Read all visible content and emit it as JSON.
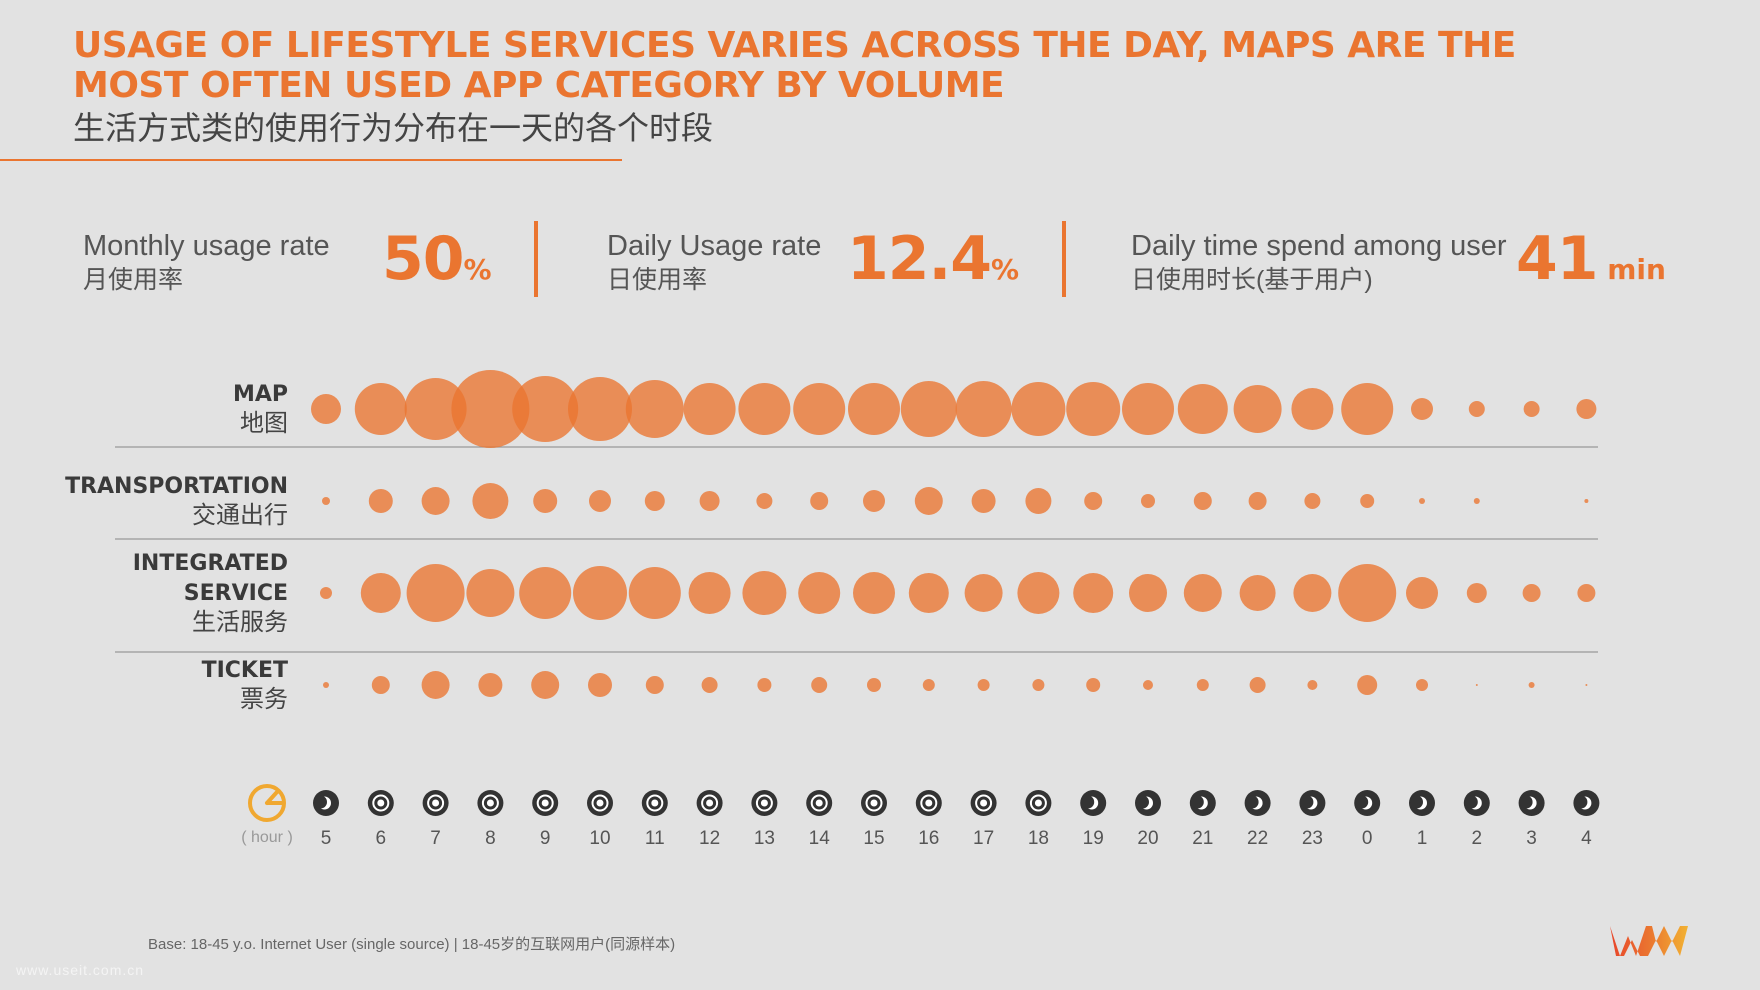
{
  "title": {
    "en": "USAGE OF LIFESTYLE SERVICES VARIES ACROSS THE DAY, MAPS ARE THE MOST OFTEN USED APP CATEGORY BY VOLUME",
    "zh": "生活方式类的使用行为分布在一天的各个时段"
  },
  "kpis": [
    {
      "label": "Monthly usage rate",
      "label_zh": "月使用率",
      "value": "50",
      "unit": "%"
    },
    {
      "label": "Daily Usage rate",
      "label_zh": "日使用率",
      "value": "12.4",
      "unit": "%"
    },
    {
      "label": "Daily time spend among user",
      "label_zh": "日使用时长(基于用户)",
      "value": "41",
      "unit": " min"
    }
  ],
  "colors": {
    "accent": "#ea7530",
    "bubble": "#ea7530",
    "bubble_opacity": 0.78,
    "rule": "#999999",
    "day_icon": "#333333",
    "night_icon": "#333333"
  },
  "chart_data": {
    "type": "bubble",
    "x_unit_label": "( hour )",
    "x": [
      "5",
      "6",
      "7",
      "8",
      "9",
      "10",
      "11",
      "12",
      "13",
      "14",
      "15",
      "16",
      "17",
      "18",
      "19",
      "20",
      "21",
      "22",
      "23",
      "0",
      "1",
      "2",
      "3",
      "4"
    ],
    "time_of_day": [
      "night",
      "day",
      "day",
      "day",
      "day",
      "day",
      "day",
      "day",
      "day",
      "day",
      "day",
      "day",
      "day",
      "day",
      "night",
      "night",
      "night",
      "night",
      "night",
      "night",
      "night",
      "night",
      "night",
      "night"
    ],
    "series": [
      {
        "name": "MAP",
        "name_zh": "地图",
        "values": [
          15,
          26,
          31,
          39,
          33,
          32,
          29,
          26,
          26,
          26,
          26,
          28,
          28,
          27,
          27,
          26,
          25,
          24,
          21,
          26,
          11,
          8,
          8,
          10
        ]
      },
      {
        "name": "TRANSPORTATION",
        "name_zh": "交通出行",
        "values": [
          4,
          12,
          14,
          18,
          12,
          11,
          10,
          10,
          8,
          9,
          11,
          14,
          12,
          13,
          9,
          7,
          9,
          9,
          8,
          7,
          3,
          3,
          0,
          2
        ]
      },
      {
        "name": "INTEGRATED SERVICE",
        "name_zh": "生活服务",
        "name_lines": [
          "INTEGRATED",
          "SERVICE"
        ],
        "values": [
          6,
          20,
          29,
          24,
          26,
          27,
          26,
          21,
          22,
          21,
          21,
          20,
          19,
          21,
          20,
          19,
          19,
          18,
          19,
          29,
          16,
          10,
          9,
          9
        ]
      },
      {
        "name": "TICKET",
        "name_zh": "票务",
        "values": [
          3,
          9,
          14,
          12,
          14,
          12,
          9,
          8,
          7,
          8,
          7,
          6,
          6,
          6,
          7,
          5,
          6,
          8,
          5,
          10,
          6,
          1,
          3,
          1
        ]
      }
    ]
  },
  "footnote": "Base: 18-45 y.o. Internet User (single source) | 18-45岁的互联网用户(同源样本)",
  "watermark": "www.useit.com.cn",
  "logo": "WM"
}
